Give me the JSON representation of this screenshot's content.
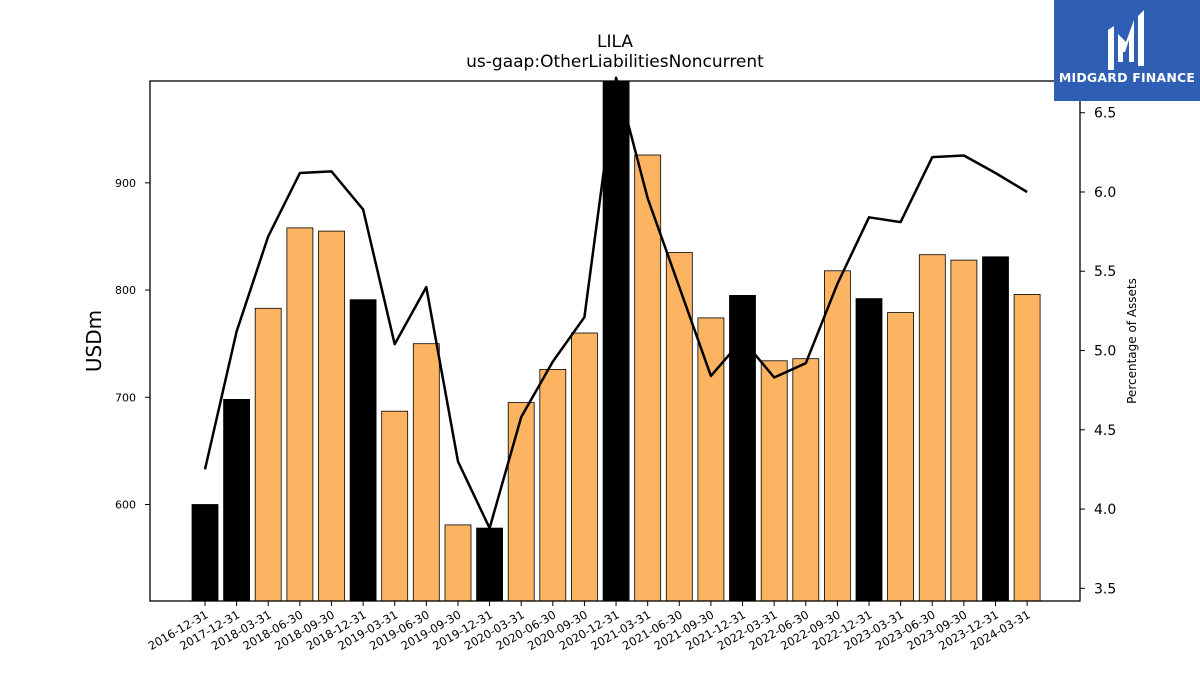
{
  "chart_data": {
    "type": "bar",
    "title": "LILA",
    "subtitle": "us-gaap:OtherLiabilitiesNoncurrent",
    "ylabel": "USDm",
    "ylabel_right": "Percentage of Assets",
    "ylim": [
      510,
      995
    ],
    "ylim_right": [
      3.42,
      6.7
    ],
    "yticks": [
      600,
      700,
      800,
      900
    ],
    "yticks_right": [
      "3.5",
      "4.0",
      "4.5",
      "5.0",
      "5.5",
      "6.0",
      "6.5"
    ],
    "categories": [
      "2016-12-31",
      "2017-12-31",
      "2018-03-31",
      "2018-06-30",
      "2018-09-30",
      "2018-12-31",
      "2019-03-31",
      "2019-06-30",
      "2019-09-30",
      "2019-12-31",
      "2020-03-31",
      "2020-06-30",
      "2020-09-30",
      "2020-12-31",
      "2021-03-31",
      "2021-06-30",
      "2021-09-30",
      "2021-12-31",
      "2022-03-31",
      "2022-06-30",
      "2022-09-30",
      "2022-12-31",
      "2023-03-31",
      "2023-06-30",
      "2023-09-30",
      "2023-12-31",
      "2024-03-31"
    ],
    "series": [
      {
        "type": "bar",
        "values": [
          600,
          698,
          783,
          858,
          855,
          791,
          687,
          750,
          581,
          578,
          695,
          726,
          760,
          995,
          926,
          835,
          774,
          795,
          734,
          736,
          818,
          792,
          779,
          833,
          828,
          831,
          796
        ],
        "colors": [
          "#000000",
          "#000000",
          "#fdb462",
          "#fdb462",
          "#fdb462",
          "#000000",
          "#fdb462",
          "#fdb462",
          "#fdb462",
          "#000000",
          "#fdb462",
          "#fdb462",
          "#fdb462",
          "#000000",
          "#fdb462",
          "#fdb462",
          "#fdb462",
          "#000000",
          "#fdb462",
          "#fdb462",
          "#fdb462",
          "#000000",
          "#fdb462",
          "#fdb462",
          "#fdb462",
          "#000000",
          "#fdb462"
        ]
      },
      {
        "type": "line",
        "axis": "right",
        "color": "#000000",
        "values": [
          4.25,
          5.12,
          5.72,
          6.12,
          6.13,
          5.89,
          5.04,
          5.4,
          4.3,
          3.88,
          4.58,
          4.93,
          5.21,
          6.72,
          5.96,
          5.4,
          4.84,
          5.07,
          4.83,
          4.92,
          5.42,
          5.84,
          5.81,
          6.22,
          6.23,
          6.12,
          6.0
        ]
      }
    ],
    "grid": false
  },
  "logo": {
    "text": "MIDGARD FINANCE",
    "color": "#2f5fb5",
    "name": "midgard-logo-icon"
  }
}
